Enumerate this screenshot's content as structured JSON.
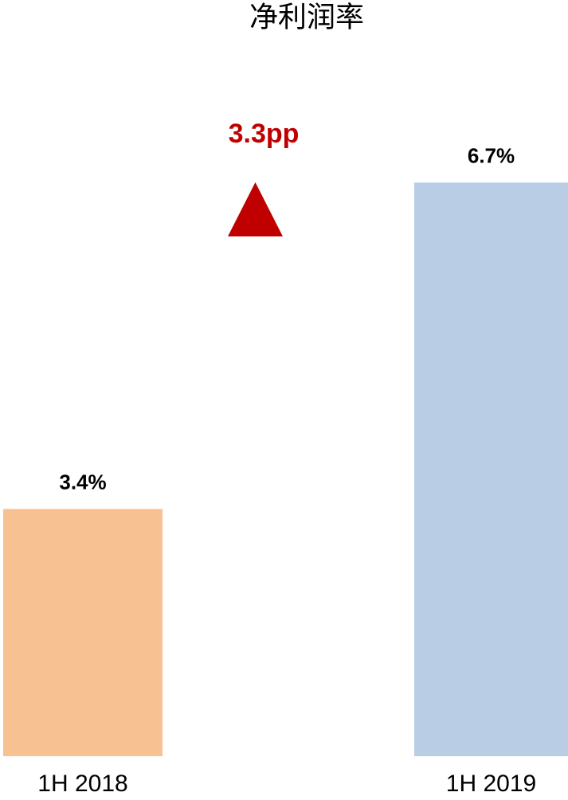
{
  "chart_data": {
    "type": "bar",
    "title": "净利润率",
    "categories": [
      "1H 2018",
      "1H 2019"
    ],
    "values": [
      3.4,
      6.7
    ],
    "value_labels": [
      "3.4%",
      "6.7%"
    ],
    "colors": [
      "#f8c191",
      "#b9cde5"
    ],
    "ylim": [
      0.9,
      7.5
    ],
    "annotation": "3.3pp",
    "annotation_color": "#c00000"
  }
}
